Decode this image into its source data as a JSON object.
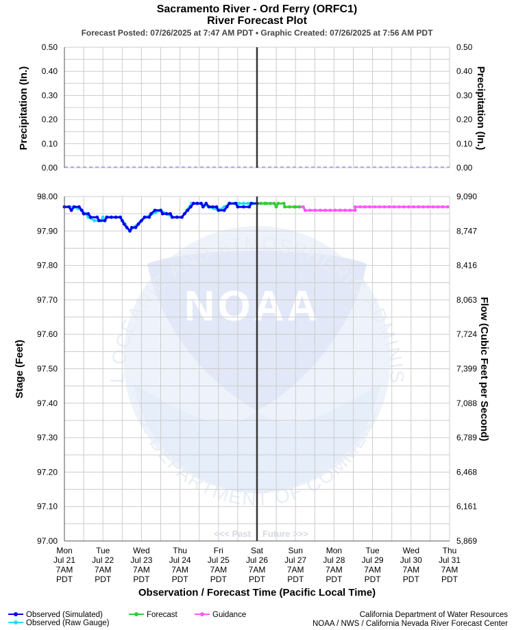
{
  "header": {
    "title_line1": "Sacramento River - Ord Ferry (ORFC1)",
    "title_line2": "River Forecast Plot",
    "subtitle": "Forecast Posted: 07/26/2025 at 7:47 AM PDT  •  Graphic Created: 07/26/2025 at 7:56 AM PDT"
  },
  "watermark": {
    "ring_top": "NATIONAL OCEANIC AND ATMOSPHERIC ADMINISTRATION",
    "ring_bottom": "U.S. DEPARTMENT OF COMMERCE",
    "center": "NOAA"
  },
  "divider_labels": {
    "past": "<<< Past",
    "future": "Future >>>"
  },
  "footer": {
    "credit_line1": "California Department of Water Resources",
    "credit_line2": "NOAA / NWS / California Nevada River Forecast Center"
  },
  "colors": {
    "observed_simulated": "#0000ee",
    "observed_raw": "#22ddee",
    "forecast": "#33cc33",
    "guidance": "#ff55ff",
    "precip_line": "#9999ee",
    "grid": "#cccccc",
    "watermark": "#dde8f8"
  },
  "chart_data": [
    {
      "type": "line",
      "title": "",
      "ylabel_left": "Precipitation (In.)",
      "ylabel_right": "Precipitation (In.)",
      "ylim": [
        0,
        0.5
      ],
      "yticks": [
        "0.50",
        "0.40",
        "0.30",
        "0.20",
        "0.10",
        "0.00"
      ],
      "grid": true,
      "series": [
        {
          "name": "",
          "x": [
            "07/21 7AM",
            "07/31 7AM"
          ],
          "values": [
            0.0,
            0.0
          ]
        }
      ]
    },
    {
      "type": "line",
      "ylabel": "Stage (Feet)",
      "ylabel_right": "Flow (Cubic Feet per Second)",
      "xlabel": "Observation / Forecast Time (Pacific Local Time)",
      "ylim": [
        97.0,
        98.0
      ],
      "yticks_left": [
        "98.00",
        "97.90",
        "97.80",
        "97.70",
        "97.60",
        "97.50",
        "97.40",
        "97.30",
        "97.20",
        "97.10",
        "97.00"
      ],
      "yticks_right": [
        "9,090",
        "8,747",
        "8,416",
        "8,063",
        "7,724",
        "7,399",
        "7,088",
        "6,789",
        "6,468",
        "6,161",
        "5,869"
      ],
      "x_ticks": [
        [
          "Mon",
          "Jul 21",
          "7AM",
          "PDT"
        ],
        [
          "Tue",
          "Jul 22",
          "7AM",
          "PDT"
        ],
        [
          "Wed",
          "Jul 23",
          "7AM",
          "PDT"
        ],
        [
          "Thu",
          "Jul 24",
          "7AM",
          "PDT"
        ],
        [
          "Fri",
          "Jul 25",
          "7AM",
          "PDT"
        ],
        [
          "Sat",
          "Jul 26",
          "7AM",
          "PDT"
        ],
        [
          "Sun",
          "Jul 27",
          "7AM",
          "PDT"
        ],
        [
          "Mon",
          "Jul 28",
          "7AM",
          "PDT"
        ],
        [
          "Tue",
          "Jul 29",
          "7AM",
          "PDT"
        ],
        [
          "Wed",
          "Jul 30",
          "7AM",
          "PDT"
        ],
        [
          "Thu",
          "Jul 31",
          "7AM",
          "PDT"
        ]
      ],
      "now_day": 5,
      "grid": true,
      "legend_position": "bottom-left",
      "series": [
        {
          "name": "Observed (Simulated)",
          "marker": true,
          "points": [
            [
              0.0,
              97.97
            ],
            [
              0.12,
              97.97
            ],
            [
              0.18,
              97.96
            ],
            [
              0.25,
              97.97
            ],
            [
              0.38,
              97.97
            ],
            [
              0.45,
              97.96
            ],
            [
              0.5,
              97.95
            ],
            [
              0.62,
              97.95
            ],
            [
              0.68,
              97.94
            ],
            [
              0.85,
              97.94
            ],
            [
              0.9,
              97.93
            ],
            [
              1.05,
              97.93
            ],
            [
              1.1,
              97.94
            ],
            [
              1.45,
              97.94
            ],
            [
              1.5,
              97.93
            ],
            [
              1.55,
              97.92
            ],
            [
              1.62,
              97.91
            ],
            [
              1.7,
              97.9
            ],
            [
              1.75,
              97.91
            ],
            [
              1.85,
              97.91
            ],
            [
              1.92,
              97.92
            ],
            [
              2.0,
              97.93
            ],
            [
              2.08,
              97.94
            ],
            [
              2.2,
              97.94
            ],
            [
              2.25,
              97.95
            ],
            [
              2.35,
              97.96
            ],
            [
              2.5,
              97.96
            ],
            [
              2.55,
              97.95
            ],
            [
              2.75,
              97.95
            ],
            [
              2.8,
              97.94
            ],
            [
              3.05,
              97.94
            ],
            [
              3.12,
              97.95
            ],
            [
              3.2,
              97.96
            ],
            [
              3.28,
              97.97
            ],
            [
              3.35,
              97.98
            ],
            [
              3.55,
              97.98
            ],
            [
              3.6,
              97.97
            ],
            [
              3.68,
              97.98
            ],
            [
              3.75,
              97.97
            ],
            [
              3.95,
              97.97
            ],
            [
              4.0,
              97.96
            ],
            [
              4.15,
              97.96
            ],
            [
              4.22,
              97.97
            ],
            [
              4.28,
              97.98
            ],
            [
              4.45,
              97.98
            ],
            [
              4.5,
              97.97
            ],
            [
              4.8,
              97.97
            ],
            [
              4.85,
              97.98
            ],
            [
              5.0,
              97.98
            ]
          ]
        },
        {
          "name": "Observed (Raw Gauge)",
          "marker": true,
          "points": [
            [
              0.0,
              97.97
            ],
            [
              0.25,
              97.97
            ],
            [
              0.45,
              97.96
            ],
            [
              0.55,
              97.95
            ],
            [
              0.62,
              97.94
            ],
            [
              0.78,
              97.93
            ],
            [
              0.95,
              97.93
            ],
            [
              1.0,
              97.94
            ],
            [
              1.05,
              97.93
            ],
            [
              1.1,
              97.94
            ],
            [
              1.45,
              97.94
            ],
            [
              1.7,
              97.9
            ],
            [
              2.1,
              97.94
            ],
            [
              2.5,
              97.96
            ],
            [
              2.8,
              97.94
            ],
            [
              3.05,
              97.94
            ],
            [
              3.3,
              97.98
            ],
            [
              3.55,
              97.98
            ],
            [
              4.0,
              97.96
            ],
            [
              4.3,
              97.98
            ],
            [
              5.0,
              97.98
            ]
          ]
        },
        {
          "name": "Forecast",
          "marker": true,
          "points": [
            [
              5.0,
              97.98
            ],
            [
              5.2,
              97.98
            ],
            [
              5.25,
              97.98
            ],
            [
              5.45,
              97.98
            ],
            [
              5.5,
              97.97
            ],
            [
              5.55,
              97.98
            ],
            [
              5.7,
              97.98
            ],
            [
              5.72,
              97.97
            ],
            [
              6.1,
              97.97
            ]
          ]
        },
        {
          "name": "Guidance",
          "marker": true,
          "points": [
            [
              6.0,
              97.97
            ],
            [
              6.2,
              97.97
            ],
            [
              6.25,
              97.96
            ],
            [
              7.55,
              97.96
            ],
            [
              7.55,
              97.97
            ],
            [
              9.95,
              97.97
            ]
          ]
        }
      ]
    }
  ]
}
